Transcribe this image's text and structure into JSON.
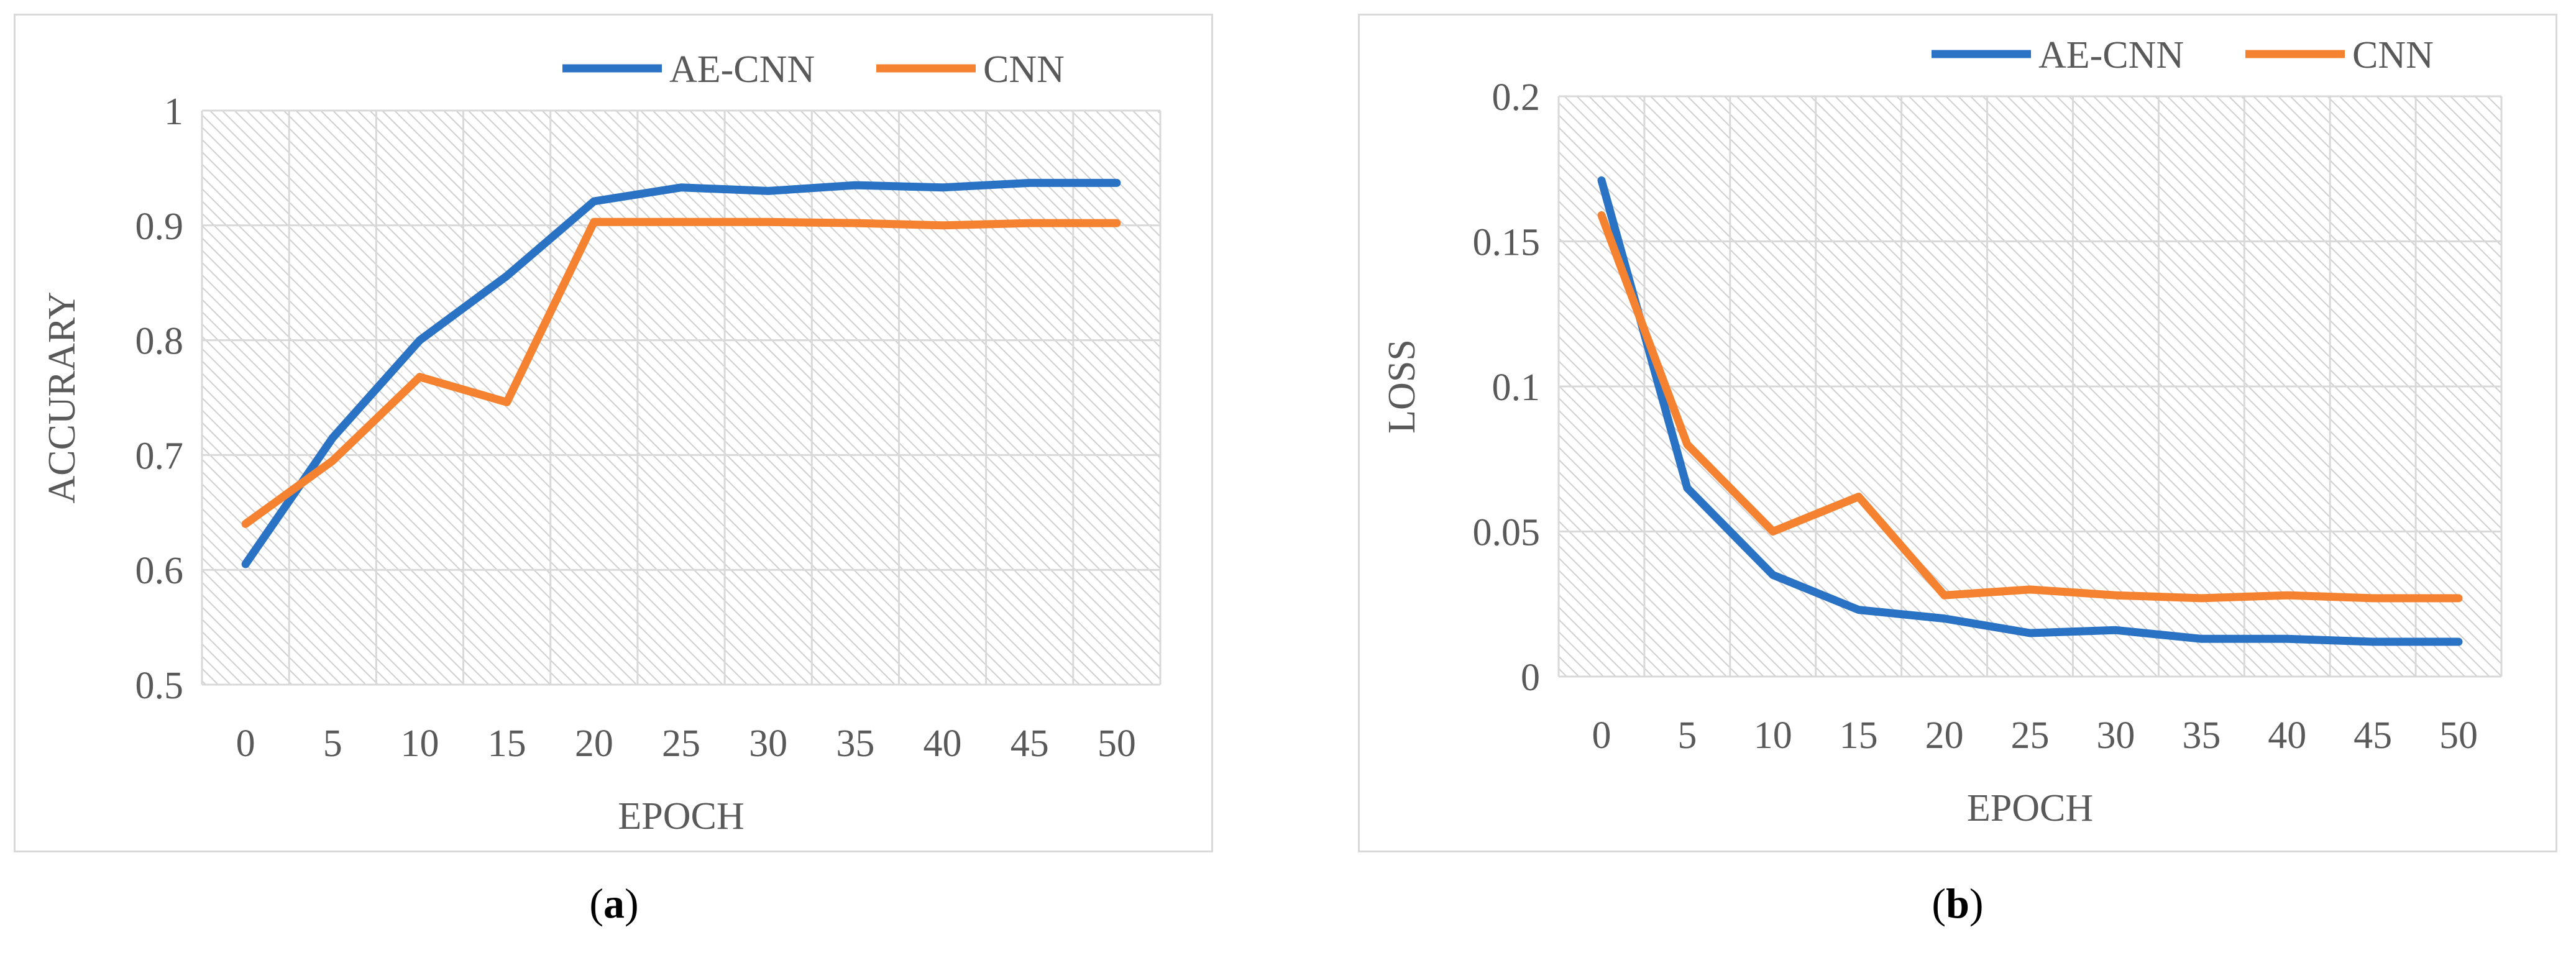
{
  "colors": {
    "ae_cnn": "#2a72c4",
    "cnn": "#f58230",
    "grid": "#d9d9d9",
    "text": "#595959",
    "hatch": "#cfcfcf"
  },
  "captions": {
    "a": "a",
    "b": "b"
  },
  "chart_data": [
    {
      "type": "line",
      "title": "",
      "xlabel": "EPOCH",
      "ylabel": "ACCURARY",
      "x": [
        0,
        5,
        10,
        15,
        20,
        25,
        30,
        35,
        40,
        45,
        50
      ],
      "x_tick_labels": [
        "0",
        "5",
        "10",
        "15",
        "20",
        "25",
        "30",
        "35",
        "40",
        "45",
        "50"
      ],
      "ylim": [
        0.5,
        1
      ],
      "y_ticks": [
        0.5,
        0.6,
        0.7,
        0.8,
        0.9,
        1
      ],
      "y_tick_labels": [
        "0.5",
        "0.6",
        "0.7",
        "0.8",
        "0.9",
        "1"
      ],
      "grid": true,
      "legend": "top-right",
      "series": [
        {
          "name": "AE-CNN",
          "color": "#2a72c4",
          "values": [
            0.605,
            0.715,
            0.8,
            0.856,
            0.921,
            0.933,
            0.93,
            0.935,
            0.933,
            0.937,
            0.937
          ]
        },
        {
          "name": "CNN",
          "color": "#f58230",
          "values": [
            0.64,
            0.695,
            0.768,
            0.746,
            0.903,
            0.903,
            0.903,
            0.902,
            0.9,
            0.902,
            0.902
          ]
        }
      ]
    },
    {
      "type": "line",
      "title": "",
      "xlabel": "EPOCH",
      "ylabel": "LOSS",
      "x": [
        0,
        5,
        10,
        15,
        20,
        25,
        30,
        35,
        40,
        45,
        50
      ],
      "x_tick_labels": [
        "0",
        "5",
        "10",
        "15",
        "20",
        "25",
        "30",
        "35",
        "40",
        "45",
        "50"
      ],
      "ylim": [
        0,
        0.2
      ],
      "y_ticks": [
        0,
        0.05,
        0.1,
        0.15,
        0.2
      ],
      "y_tick_labels": [
        "0",
        "0.05",
        "0.1",
        "0.15",
        "0.2"
      ],
      "grid": true,
      "legend": "top-right",
      "series": [
        {
          "name": "AE-CNN",
          "color": "#2a72c4",
          "values": [
            0.171,
            0.065,
            0.035,
            0.023,
            0.02,
            0.015,
            0.016,
            0.013,
            0.013,
            0.012,
            0.012
          ]
        },
        {
          "name": "CNN",
          "color": "#f58230",
          "values": [
            0.159,
            0.08,
            0.05,
            0.062,
            0.028,
            0.03,
            0.028,
            0.027,
            0.028,
            0.027,
            0.027
          ]
        }
      ]
    }
  ]
}
